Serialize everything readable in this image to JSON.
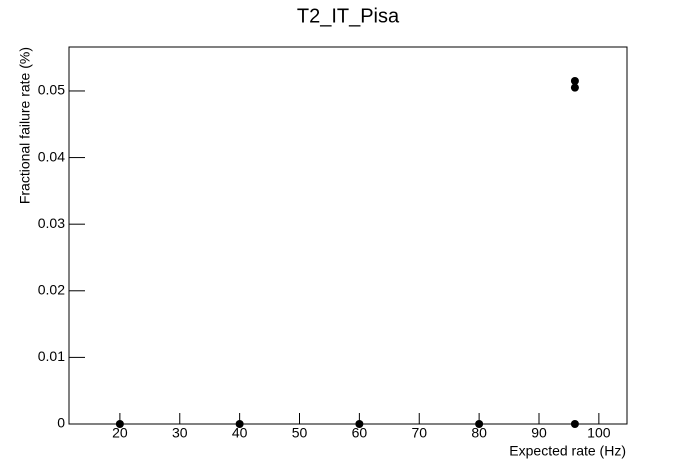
{
  "chart_data": {
    "type": "scatter",
    "title": "T2_IT_Pisa",
    "x_label": "Expected rate (Hz)",
    "y_label": "Fractional failure rate (%)",
    "x": [
      20,
      40,
      60,
      80,
      96,
      96,
      96
    ],
    "values": [
      0,
      0,
      0,
      0,
      0,
      0.0505,
      0.0515
    ],
    "color": "#000000",
    "xlim": [
      11.5,
      104.7
    ],
    "xticks": [
      20,
      30,
      40,
      50,
      60,
      70,
      80,
      90,
      100
    ],
    "ylim": [
      0,
      0.0566
    ],
    "yticks": [
      0,
      0.01,
      0.02,
      0.03,
      0.04,
      0.05
    ]
  }
}
